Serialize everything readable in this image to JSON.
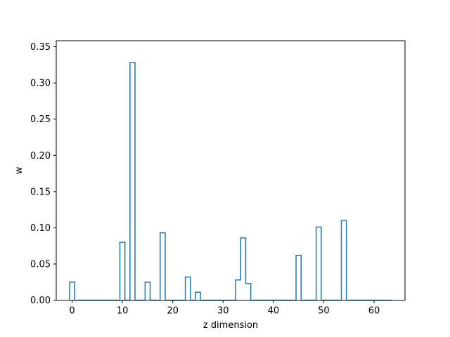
{
  "chart_data": {
    "type": "step",
    "title": "",
    "xlabel": "z dimension",
    "ylabel": "w",
    "xlim": [
      -3.15,
      66.15
    ],
    "ylim": [
      0,
      0.3583
    ],
    "xticks": [
      0,
      10,
      20,
      30,
      40,
      50,
      60
    ],
    "xtick_labels": [
      "0",
      "10",
      "20",
      "30",
      "40",
      "50",
      "60"
    ],
    "yticks": [
      0.0,
      0.05,
      0.1,
      0.15,
      0.2,
      0.25,
      0.3,
      0.35
    ],
    "ytick_labels": [
      "0.00",
      "0.05",
      "0.10",
      "0.15",
      "0.20",
      "0.25",
      "0.30",
      "0.35"
    ],
    "grid": false,
    "series": [
      {
        "color": "#1f77b4",
        "x": [
          0,
          1,
          2,
          3,
          4,
          5,
          6,
          7,
          8,
          9,
          10,
          11,
          12,
          13,
          14,
          15,
          16,
          17,
          18,
          19,
          20,
          21,
          22,
          23,
          24,
          25,
          26,
          27,
          28,
          29,
          30,
          31,
          32,
          33,
          34,
          35,
          36,
          37,
          38,
          39,
          40,
          41,
          42,
          43,
          44,
          45,
          46,
          47,
          48,
          49,
          50,
          51,
          52,
          53,
          54,
          55,
          56,
          57,
          58,
          59,
          60,
          61,
          62,
          63
        ],
        "values": [
          0.025,
          0,
          0,
          0,
          0,
          0,
          0,
          0,
          0,
          0,
          0.08,
          0,
          0.328,
          0,
          0,
          0.025,
          0,
          0,
          0.093,
          0,
          0,
          0,
          0,
          0.032,
          0,
          0.011,
          0,
          0,
          0,
          0,
          0,
          0,
          0,
          0.028,
          0.086,
          0.023,
          0,
          0,
          0,
          0,
          0,
          0,
          0,
          0,
          0,
          0.062,
          0,
          0,
          0,
          0.101,
          0,
          0,
          0,
          0,
          0.11,
          0,
          0,
          0,
          0,
          0,
          0,
          0,
          0,
          0
        ]
      }
    ]
  }
}
